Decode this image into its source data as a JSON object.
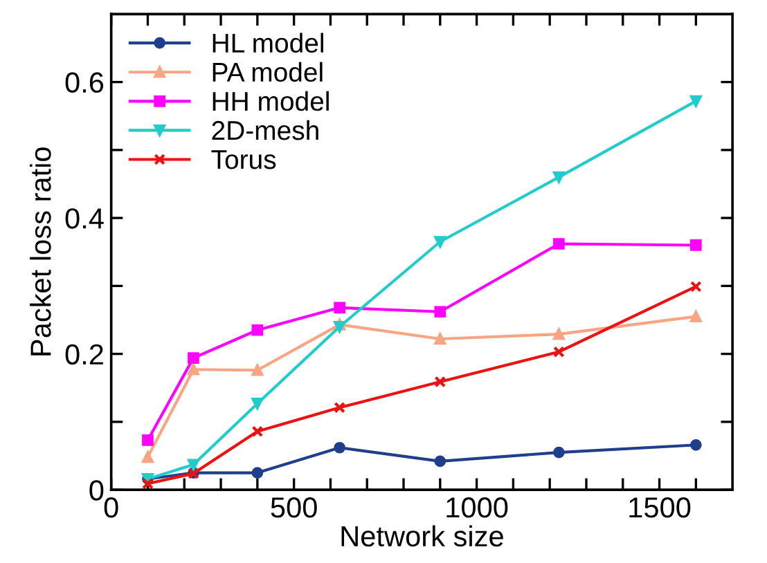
{
  "chart_data": {
    "type": "line",
    "xlabel": "Network size",
    "ylabel": "Packet loss ratio",
    "x": [
      100,
      225,
      400,
      625,
      900,
      1225,
      1600
    ],
    "series": [
      {
        "name": "HL model",
        "color": "#1f3f8c",
        "marker": "circle",
        "values": [
          0.016,
          0.025,
          0.025,
          0.062,
          0.042,
          0.055,
          0.066
        ]
      },
      {
        "name": "PA model",
        "color": "#f7a582",
        "marker": "triangle",
        "values": [
          0.048,
          0.177,
          0.176,
          0.243,
          0.222,
          0.229,
          0.255
        ]
      },
      {
        "name": "HH model",
        "color": "#ff00ff",
        "marker": "square",
        "values": [
          0.073,
          0.194,
          0.235,
          0.268,
          0.262,
          0.362,
          0.36
        ]
      },
      {
        "name": "2D-mesh",
        "color": "#22cccc",
        "marker": "triangle_down",
        "values": [
          0.016,
          0.037,
          0.127,
          0.24,
          0.365,
          0.46,
          0.572
        ]
      },
      {
        "name": "Torus",
        "color": "#ee1111",
        "marker": "cross",
        "values": [
          0.009,
          0.024,
          0.086,
          0.121,
          0.159,
          0.203,
          0.299
        ]
      }
    ],
    "xlim": [
      0,
      1700
    ],
    "ylim": [
      0,
      0.7
    ],
    "xticks": [
      0,
      {
        "value": 100,
        "label": null
      },
      {
        "value": 200,
        "label": null
      },
      {
        "value": 300,
        "label": null
      },
      {
        "value": 400,
        "label": null
      },
      500,
      {
        "value": 600,
        "label": null
      },
      {
        "value": 700,
        "label": null
      },
      {
        "value": 800,
        "label": null
      },
      {
        "value": 900,
        "label": null
      },
      1000,
      {
        "value": 1100,
        "label": null
      },
      {
        "value": 1200,
        "label": null
      },
      {
        "value": 1300,
        "label": null
      },
      {
        "value": 1400,
        "label": null
      },
      1500,
      {
        "value": 1600,
        "label": null
      }
    ],
    "yticks": [
      {
        "value": 0,
        "label": "0"
      },
      {
        "value": 0.1,
        "label": null
      },
      0.2,
      {
        "value": 0.3,
        "label": null
      },
      0.4,
      {
        "value": 0.5,
        "label": null
      },
      0.6
    ],
    "grid": false,
    "legend": "top left",
    "line_style": "solid"
  }
}
